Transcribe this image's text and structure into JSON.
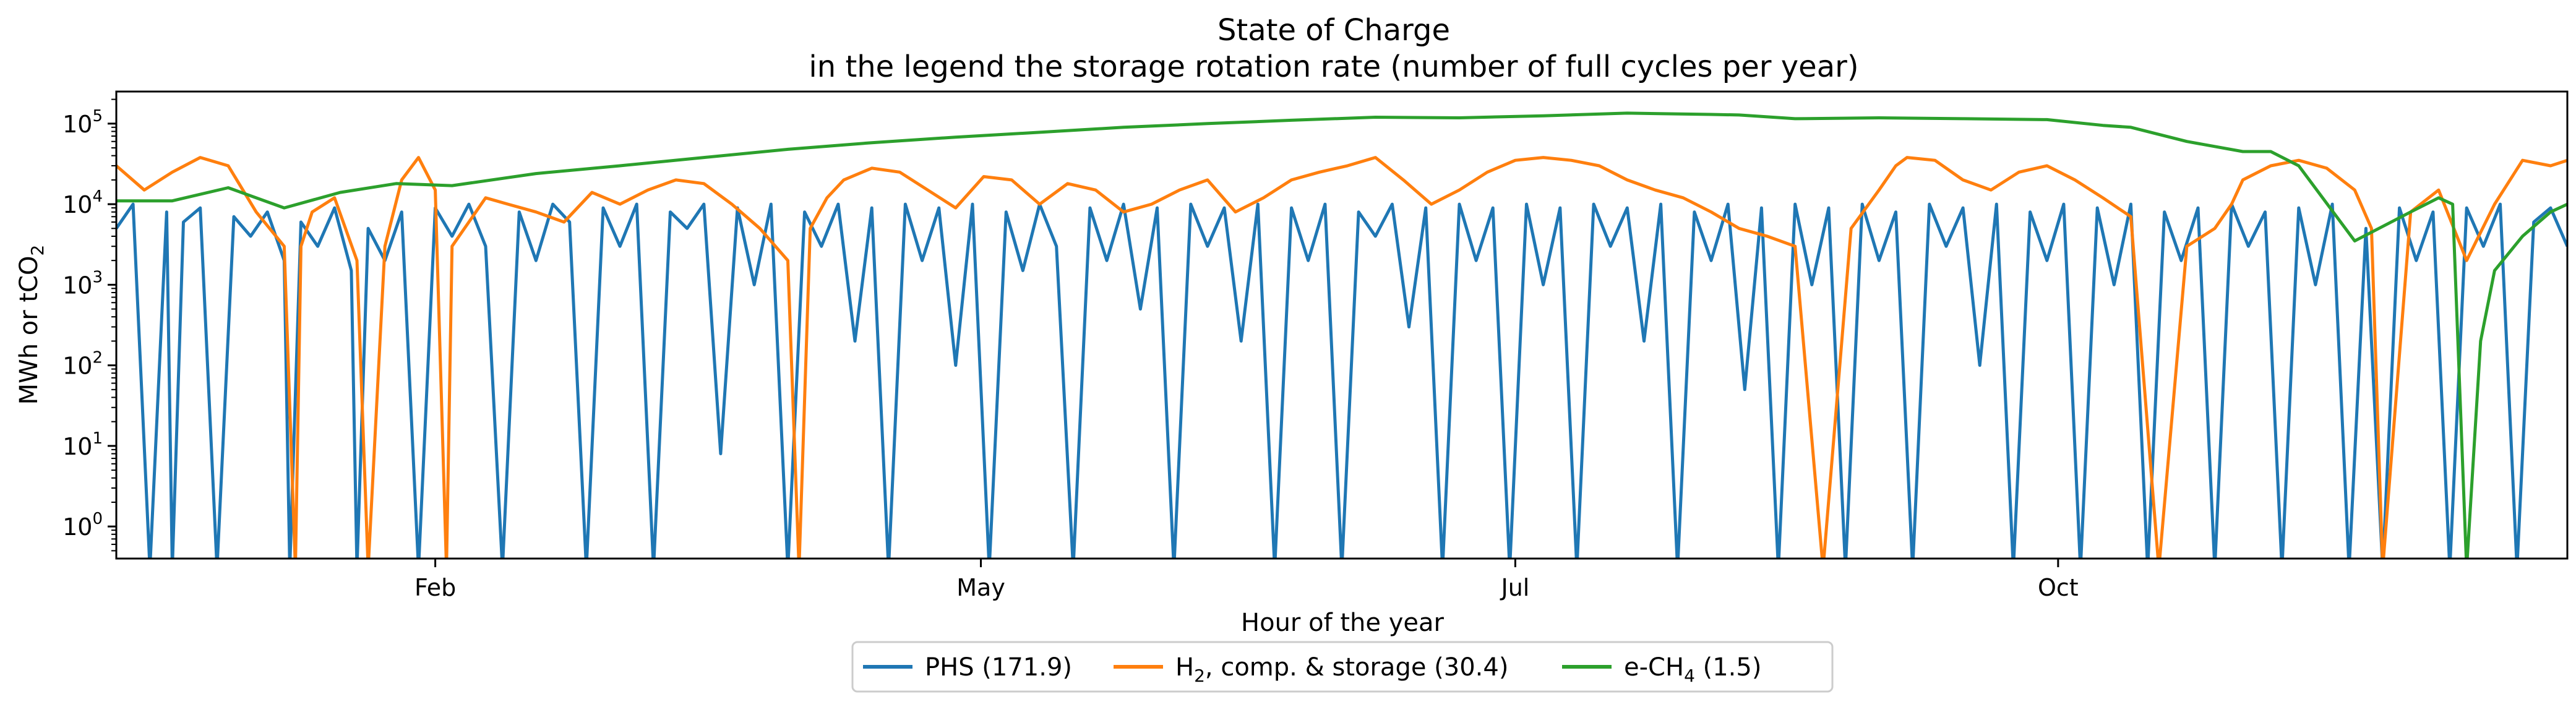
{
  "chart_data": {
    "type": "line",
    "title": "State of Charge",
    "subtitle": "in the legend the storage rotation rate (number of full cycles per year)",
    "xlabel": "Hour of the year",
    "ylabel_main": "MWh or tCO",
    "ylabel_sub": "2",
    "yscale": "log",
    "ylim": [
      0.4,
      250000
    ],
    "xlim": [
      0,
      8760
    ],
    "grid": false,
    "legend_position": "bottom-center",
    "x_ticks": [
      {
        "label": "Feb",
        "value": 1140
      },
      {
        "label": "May",
        "value": 3090
      },
      {
        "label": "Jul",
        "value": 5000
      },
      {
        "label": "Oct",
        "value": 6940
      }
    ],
    "y_ticks": [
      {
        "base": "10",
        "exp": "0",
        "value": 1
      },
      {
        "base": "10",
        "exp": "1",
        "value": 10
      },
      {
        "base": "10",
        "exp": "2",
        "value": 100
      },
      {
        "base": "10",
        "exp": "3",
        "value": 1000
      },
      {
        "base": "10",
        "exp": "4",
        "value": 10000
      },
      {
        "base": "10",
        "exp": "5",
        "value": 100000
      }
    ],
    "series": [
      {
        "name": "PHS (171.9)",
        "legend_parts": [
          "PHS (171.9)"
        ],
        "color": "#1f77b4",
        "x": [
          0,
          60,
          120,
          180,
          200,
          240,
          300,
          360,
          420,
          480,
          540,
          600,
          620,
          660,
          720,
          780,
          840,
          860,
          900,
          960,
          1020,
          1080,
          1140,
          1200,
          1260,
          1320,
          1380,
          1440,
          1500,
          1560,
          1620,
          1680,
          1740,
          1800,
          1860,
          1920,
          1980,
          2040,
          2100,
          2160,
          2220,
          2280,
          2340,
          2400,
          2460,
          2520,
          2580,
          2640,
          2700,
          2760,
          2820,
          2880,
          2940,
          3000,
          3060,
          3120,
          3180,
          3240,
          3300,
          3360,
          3420,
          3480,
          3540,
          3600,
          3660,
          3720,
          3780,
          3840,
          3900,
          3960,
          4020,
          4080,
          4140,
          4200,
          4260,
          4320,
          4380,
          4440,
          4500,
          4560,
          4620,
          4680,
          4740,
          4800,
          4860,
          4920,
          4980,
          5040,
          5100,
          5160,
          5220,
          5280,
          5340,
          5400,
          5460,
          5520,
          5580,
          5640,
          5700,
          5760,
          5820,
          5880,
          5940,
          6000,
          6060,
          6120,
          6180,
          6240,
          6300,
          6360,
          6420,
          6480,
          6540,
          6600,
          6660,
          6720,
          6780,
          6840,
          6900,
          6960,
          7020,
          7080,
          7140,
          7200,
          7260,
          7320,
          7380,
          7440,
          7500,
          7560,
          7620,
          7680,
          7740,
          7800,
          7860,
          7920,
          7980,
          8040,
          8100,
          8160,
          8220,
          8280,
          8340,
          8400,
          8460,
          8520,
          8580,
          8640,
          8700,
          8760
        ],
        "y": [
          5000,
          10000,
          0.3,
          8000,
          0.3,
          6000,
          9000,
          0.3,
          7000,
          4000,
          8000,
          2000,
          0.3,
          6000,
          3000,
          9000,
          1500,
          0.3,
          5000,
          2000,
          8000,
          0.3,
          9000,
          4000,
          10000,
          3000,
          0.3,
          8000,
          2000,
          10000,
          6000,
          0.3,
          9000,
          3000,
          10000,
          0.3,
          8000,
          5000,
          10000,
          8,
          9000,
          1000,
          10000,
          0.3,
          8000,
          3000,
          10000,
          200,
          9000,
          0.3,
          10000,
          2000,
          9000,
          100,
          10000,
          0.3,
          8000,
          1500,
          10000,
          3000,
          0.3,
          9000,
          2000,
          10000,
          500,
          9000,
          0.3,
          10000,
          3000,
          9000,
          200,
          10000,
          0.3,
          9000,
          2000,
          10000,
          0.3,
          8000,
          4000,
          10000,
          300,
          9000,
          0.3,
          10000,
          2000,
          9000,
          0.3,
          10000,
          1000,
          9000,
          0.3,
          10000,
          3000,
          9000,
          200,
          10000,
          0.3,
          8000,
          2000,
          10000,
          50,
          9000,
          0.3,
          10000,
          1000,
          9000,
          0.3,
          10000,
          2000,
          8000,
          0.3,
          10000,
          3000,
          9000,
          100,
          10000,
          0.3,
          8000,
          2000,
          10000,
          0.3,
          9000,
          1000,
          10000,
          0.3,
          8000,
          2000,
          9000,
          0.3,
          10000,
          3000,
          8000,
          0.3,
          9000,
          1000,
          10000,
          0.3,
          5000,
          0.3,
          9000,
          2000,
          8000,
          0.3,
          9000,
          3000,
          10000,
          0.3,
          6000,
          9000,
          3000
        ]
      },
      {
        "name": "H2, comp. & storage (30.4)",
        "legend_parts": [
          "H",
          "2",
          ", comp. & storage (30.4)"
        ],
        "color": "#ff7f0e",
        "x": [
          0,
          100,
          200,
          300,
          400,
          500,
          600,
          640,
          660,
          700,
          780,
          860,
          900,
          960,
          1020,
          1080,
          1140,
          1180,
          1200,
          1260,
          1320,
          1400,
          1500,
          1600,
          1700,
          1800,
          1900,
          2000,
          2100,
          2200,
          2300,
          2400,
          2440,
          2480,
          2540,
          2600,
          2700,
          2800,
          2900,
          3000,
          3100,
          3200,
          3300,
          3400,
          3500,
          3600,
          3700,
          3800,
          3900,
          4000,
          4100,
          4200,
          4300,
          4400,
          4500,
          4600,
          4700,
          4800,
          4900,
          5000,
          5100,
          5200,
          5300,
          5400,
          5500,
          5600,
          5700,
          5800,
          5900,
          6000,
          6100,
          6200,
          6300,
          6360,
          6400,
          6500,
          6600,
          6700,
          6800,
          6900,
          7000,
          7100,
          7200,
          7300,
          7400,
          7500,
          7560,
          7600,
          7700,
          7800,
          7900,
          8000,
          8060,
          8100,
          8200,
          8300,
          8400,
          8500,
          8600,
          8700,
          8760
        ],
        "y": [
          30000,
          15000,
          25000,
          38000,
          30000,
          8000,
          3000,
          0.3,
          3000,
          8000,
          12000,
          2000,
          0.3,
          3000,
          20000,
          38000,
          15000,
          0.3,
          3000,
          6000,
          12000,
          10000,
          8000,
          6000,
          14000,
          10000,
          15000,
          20000,
          18000,
          10000,
          5000,
          2000,
          0.3,
          5000,
          12000,
          20000,
          28000,
          25000,
          15000,
          9000,
          22000,
          20000,
          10000,
          18000,
          15000,
          8000,
          10000,
          15000,
          20000,
          8000,
          12000,
          20000,
          25000,
          30000,
          38000,
          20000,
          10000,
          15000,
          25000,
          35000,
          38000,
          35000,
          30000,
          20000,
          15000,
          12000,
          8000,
          5000,
          4000,
          3000,
          0.3,
          5000,
          15000,
          30000,
          38000,
          35000,
          20000,
          15000,
          25000,
          30000,
          20000,
          12000,
          7000,
          0.3,
          3000,
          5000,
          10000,
          20000,
          30000,
          35000,
          28000,
          15000,
          5000,
          0.3,
          8000,
          15000,
          2000,
          10000,
          35000,
          30000,
          35000
        ]
      },
      {
        "name": "e-CH4 (1.5)",
        "legend_parts": [
          "e-CH",
          "4",
          " (1.5)"
        ],
        "color": "#2ca02c",
        "x": [
          0,
          200,
          400,
          600,
          800,
          1000,
          1200,
          1500,
          1800,
          2100,
          2400,
          2700,
          3000,
          3300,
          3600,
          3900,
          4200,
          4500,
          4800,
          5100,
          5400,
          5700,
          5800,
          6000,
          6300,
          6600,
          6900,
          7100,
          7200,
          7400,
          7600,
          7700,
          7800,
          8000,
          8200,
          8300,
          8350,
          8400,
          8450,
          8500,
          8600,
          8700,
          8760
        ],
        "y": [
          11000,
          11000,
          16000,
          9000,
          14000,
          18000,
          17000,
          24000,
          30000,
          38000,
          48000,
          58000,
          68000,
          78000,
          90000,
          100000,
          110000,
          120000,
          118000,
          125000,
          135000,
          130000,
          128000,
          115000,
          118000,
          115000,
          112000,
          95000,
          90000,
          60000,
          45000,
          45000,
          30000,
          3500,
          8000,
          12000,
          10000,
          0.3,
          200,
          1500,
          4000,
          8000,
          10000
        ]
      }
    ]
  }
}
